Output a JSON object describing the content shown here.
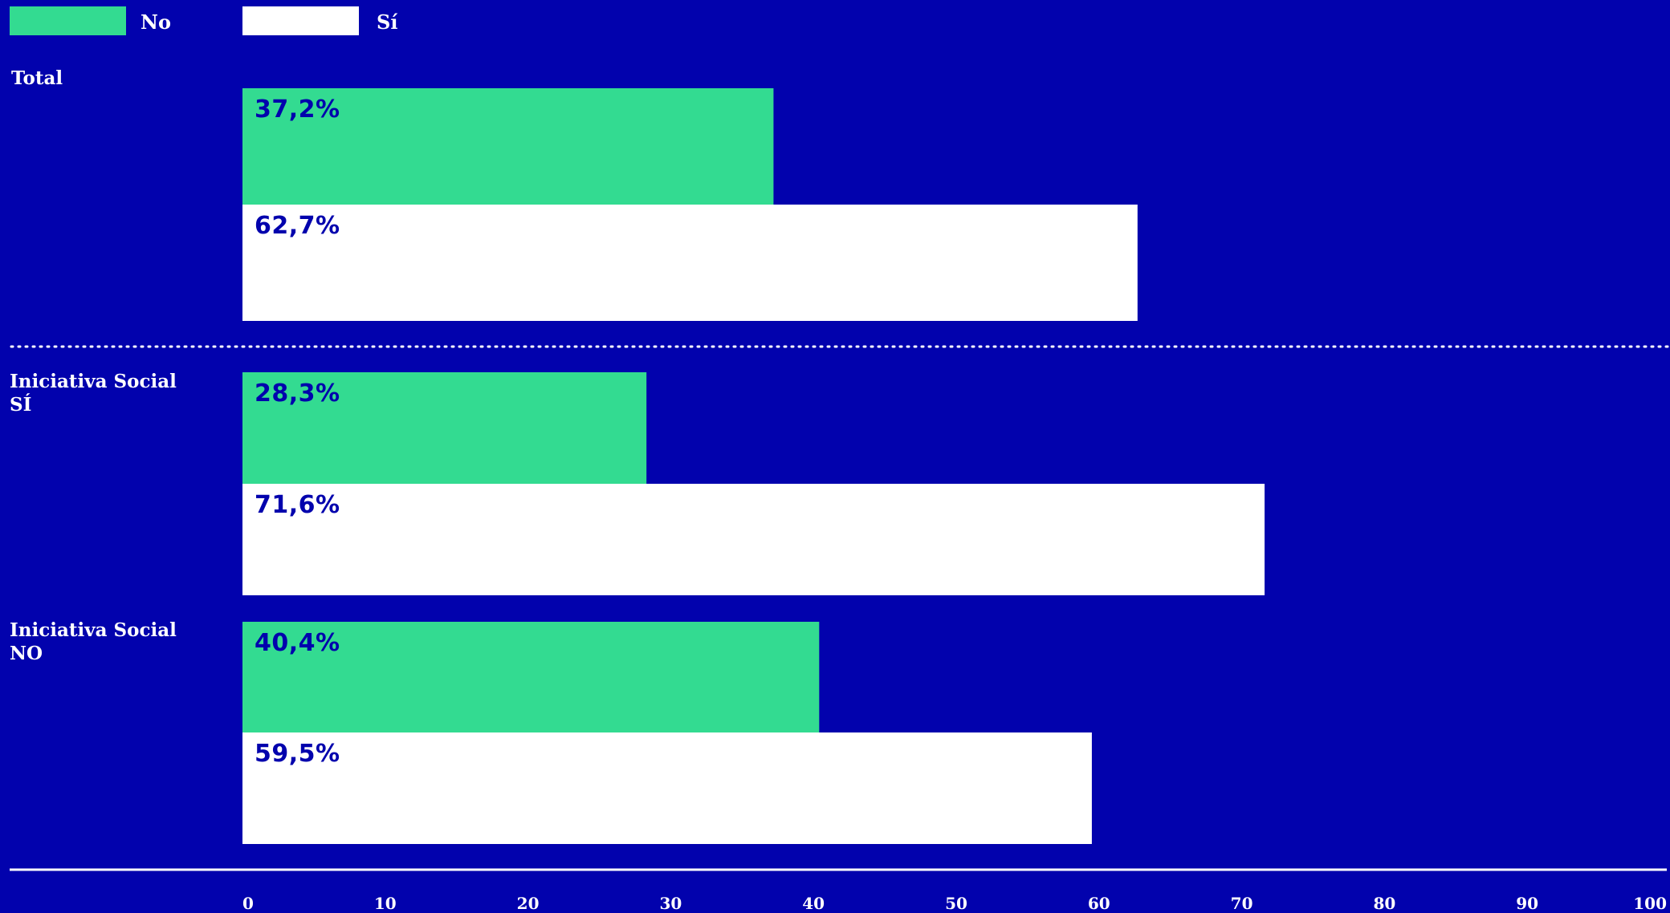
{
  "colors": {
    "background": "#0202ad",
    "no": "#33db91",
    "si": "#ffffff",
    "label_on_bar": "#0202ad",
    "text": "#ffffff"
  },
  "chart_data": {
    "type": "bar",
    "orientation": "horizontal",
    "legend_position": "top-left",
    "xlim": [
      0,
      100
    ],
    "x_ticks": [
      0,
      10,
      20,
      30,
      40,
      50,
      60,
      70,
      80,
      90,
      100
    ],
    "grid": false,
    "categories": [
      {
        "label_lines": [
          "Total"
        ]
      },
      {
        "label_lines": [
          "Iniciativa Social",
          "SÍ"
        ]
      },
      {
        "label_lines": [
          "Iniciativa Social",
          "NO"
        ]
      }
    ],
    "series": [
      {
        "name": "No",
        "color": "#33db91",
        "values": [
          37.2,
          28.3,
          40.4
        ],
        "labels": [
          "37,2%",
          "28,3%",
          "40,4%"
        ]
      },
      {
        "name": "Sí",
        "color": "#ffffff",
        "values": [
          62.7,
          71.6,
          59.5
        ],
        "labels": [
          "62,7%",
          "71,6%",
          "59,5%"
        ]
      }
    ]
  }
}
